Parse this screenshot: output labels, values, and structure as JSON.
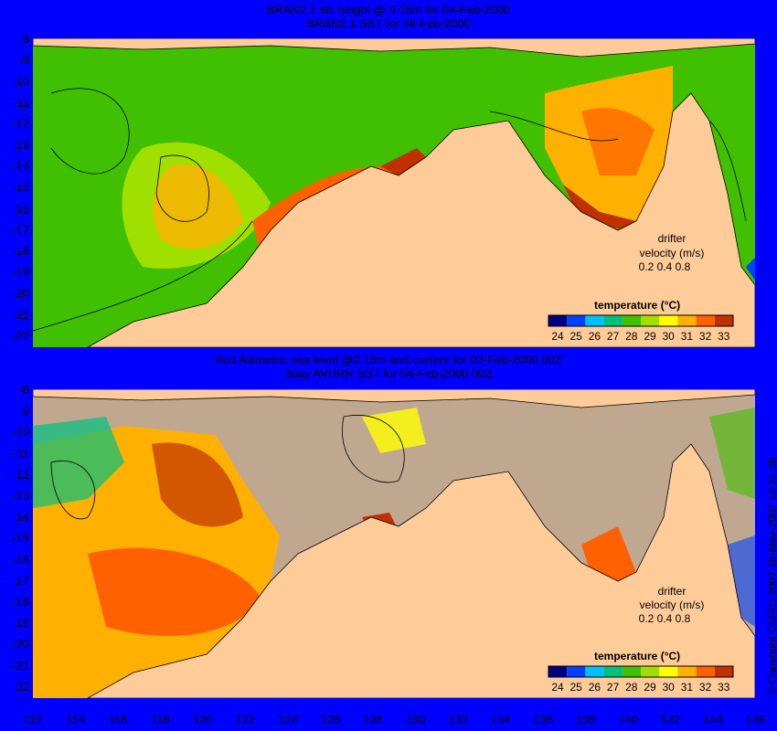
{
  "top_panel": {
    "title_line1": "BRAN2.1 sfc height @ 0.15m for 04-Feb-2000",
    "title_line2": "BRAN2.1 SST for 04-Feb-2000"
  },
  "bottom_panel": {
    "title_line1": "Au3 Altimetric sea level  @0.15m and current for 02-Feb-2000 00Z",
    "title_line2": "3day AVHRR SST for 04-Feb-2000 00Z"
  },
  "y_ticks": [
    "-8",
    "-9",
    "-10",
    "-11",
    "-12",
    "-13",
    "-14",
    "-15",
    "-16",
    "-17",
    "-18",
    "-19",
    "-20",
    "-21",
    "-22"
  ],
  "x_ticks": [
    "112",
    "114",
    "116",
    "118",
    "120",
    "122",
    "124",
    "126",
    "128",
    "130",
    "132",
    "134",
    "136",
    "138",
    "140",
    "142",
    "144",
    "146"
  ],
  "legend": {
    "title": "temperature (°C)",
    "labels": [
      "24",
      "25",
      "26",
      "27",
      "28",
      "29",
      "30",
      "31",
      "32",
      "33"
    ],
    "colors": [
      "#00007f",
      "#0040ff",
      "#00c0ff",
      "#00c080",
      "#40c000",
      "#a0e000",
      "#ffff00",
      "#ffb000",
      "#ff6000",
      "#c03000"
    ]
  },
  "drifter": {
    "title": "drifter",
    "velocity_label": "velocity (m/s)",
    "scale_values": "0.2 0.4 0.8"
  },
  "colors": {
    "background": "#0000ff",
    "land": "#ffcc99",
    "no_data": "#c0a890"
  },
  "copyright": "© Copyright CSIRO 2007  18-May-2007 12:21:38"
}
